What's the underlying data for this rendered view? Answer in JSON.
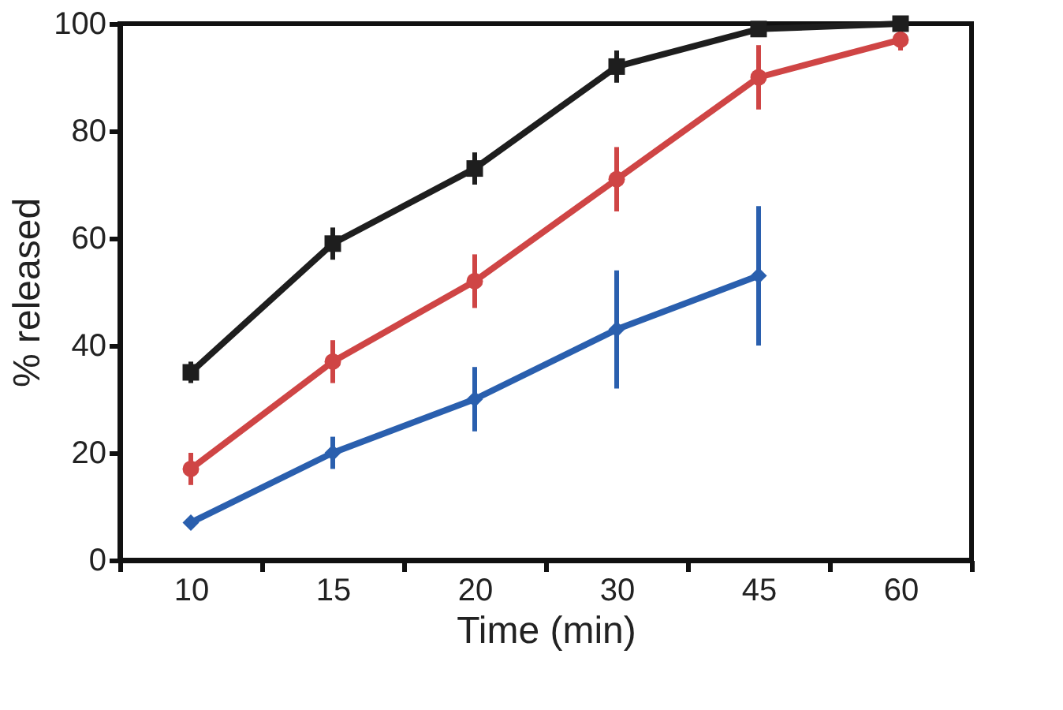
{
  "chart_data": {
    "type": "line",
    "xlabel": "Time (min)",
    "ylabel": "% released",
    "categories": [
      "10",
      "15",
      "20",
      "30",
      "45",
      "60"
    ],
    "ylim": [
      0,
      100
    ],
    "yticks": [
      0,
      20,
      40,
      60,
      80,
      100
    ],
    "grid": false,
    "series": [
      {
        "color": "#1e1e1e",
        "marker": "square",
        "values": [
          35,
          59,
          73,
          92,
          99,
          100
        ],
        "errors": [
          2,
          3,
          3,
          3,
          1,
          1
        ]
      },
      {
        "color": "#cf4545",
        "marker": "circle",
        "values": [
          17,
          37,
          52,
          71,
          90,
          97
        ],
        "errors": [
          3,
          4,
          5,
          6,
          6,
          2
        ]
      },
      {
        "color": "#2a5fae",
        "marker": "diamond",
        "values": [
          7,
          20,
          30,
          43,
          53,
          null
        ],
        "errors": [
          1,
          3,
          6,
          11,
          13,
          null
        ]
      }
    ]
  }
}
